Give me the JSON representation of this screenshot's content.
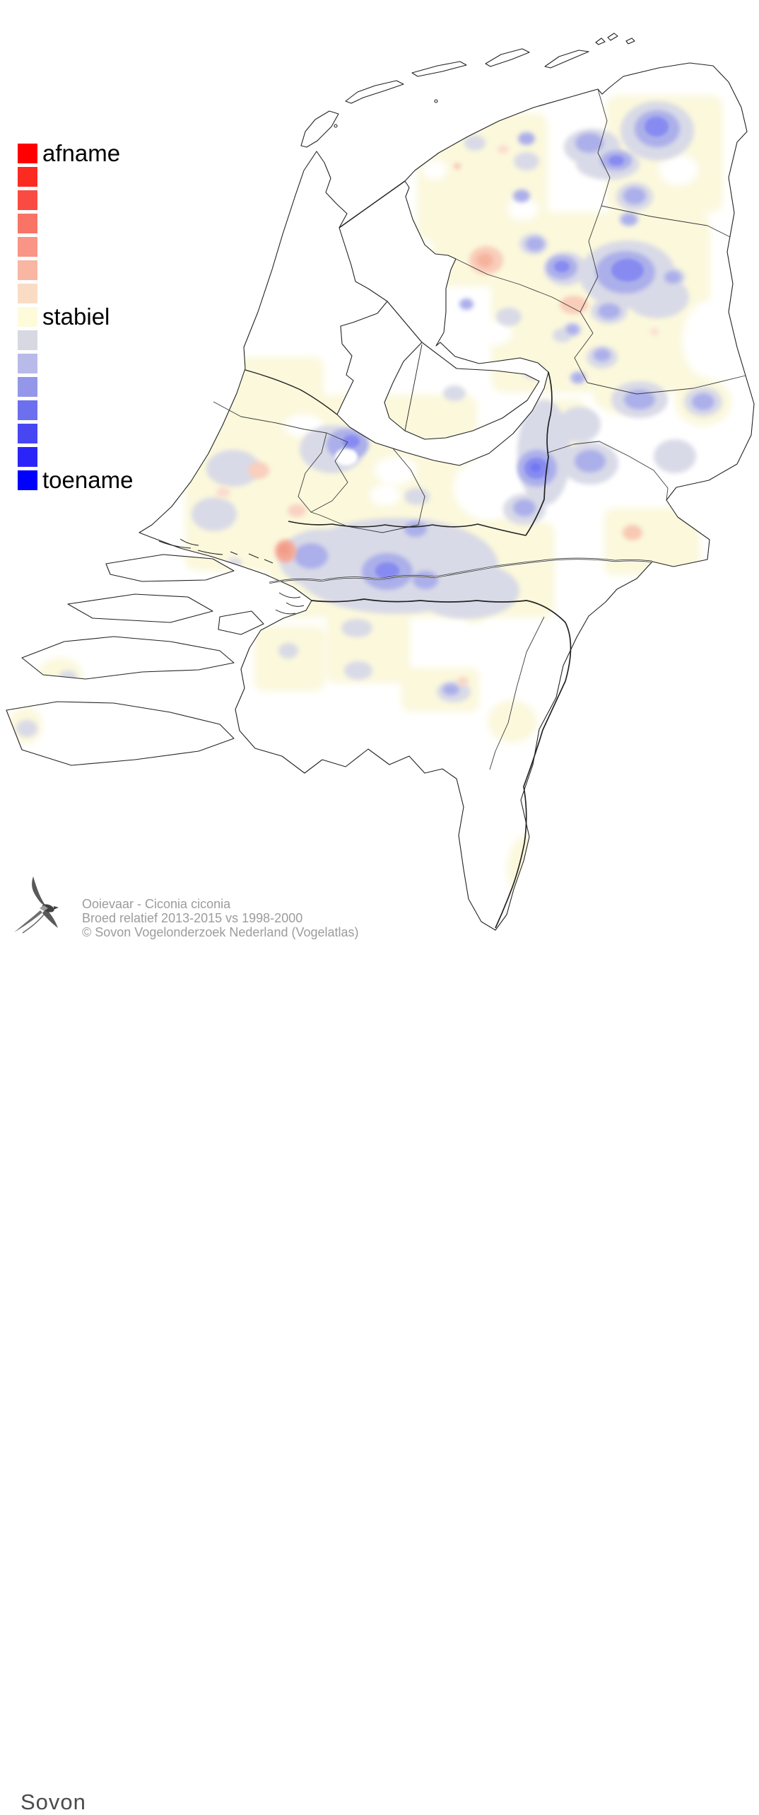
{
  "legend": {
    "items": [
      {
        "color": "#FF0000",
        "label": "afname"
      },
      {
        "color": "#FB2B21"
      },
      {
        "color": "#FA4B42"
      },
      {
        "color": "#F97466"
      },
      {
        "color": "#F99486"
      },
      {
        "color": "#F8B6A3"
      },
      {
        "color": "#FADCC4"
      },
      {
        "color": "#FDFBDA",
        "label": "stabiel"
      },
      {
        "color": "#D8D8E2"
      },
      {
        "color": "#B8BBE8"
      },
      {
        "color": "#9396E9"
      },
      {
        "color": "#6C6FEE"
      },
      {
        "color": "#4846F3"
      },
      {
        "color": "#2B24F8"
      },
      {
        "color": "#0000FF",
        "label": "toename"
      }
    ]
  },
  "footer": {
    "species_line": "Ooievaar - Ciconia ciconia",
    "subtitle_line": "Broed relatief 2013-2015 vs 1998-2000",
    "copyright_line": "© Sovon Vogelonderzoek Nederland (Vogelatlas)",
    "logo_text": "Sovon"
  },
  "map": {
    "palette": {
      "stable_cream": "#FBF8DC",
      "increase_weak": "#D9DAE7",
      "increase_light": "#ABAFEA",
      "increase_strong": "#878BF1",
      "increase_deep": "#7177F3",
      "decrease_light": "#F9CFBB",
      "decrease_medium": "#F6AF9B",
      "decrease_strong": "#F29B89",
      "outline": "#222222"
    }
  }
}
